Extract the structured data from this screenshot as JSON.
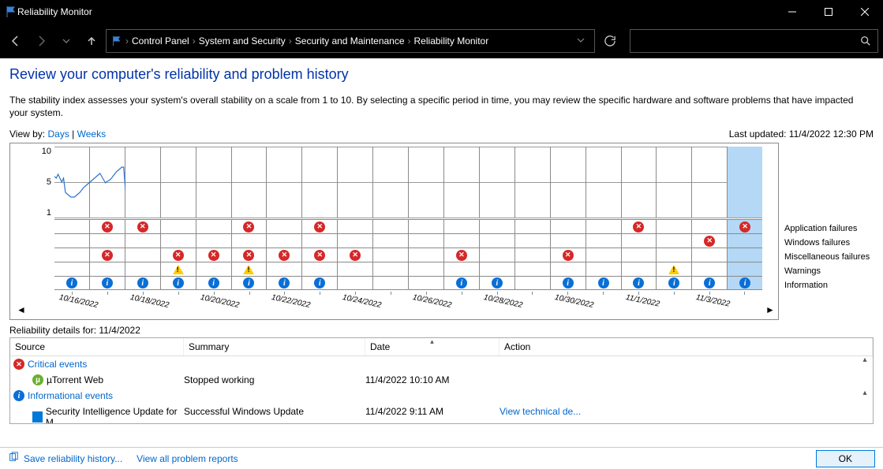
{
  "window": {
    "title": "Reliability Monitor"
  },
  "breadcrumbs": [
    "Control Panel",
    "System and Security",
    "Security and Maintenance",
    "Reliability Monitor"
  ],
  "page": {
    "heading": "Review your computer's reliability and problem history",
    "description": "The stability index assesses your system's overall stability on a scale from 1 to 10. By selecting a specific period in time, you may review the specific hardware and software problems that have impacted your system.",
    "view_by_label": "View by:",
    "view_days": "Days",
    "view_weeks": "Weeks",
    "last_updated_label": "Last updated:",
    "last_updated_value": "11/4/2022 12:30 PM"
  },
  "chart": {
    "y_ticks": [
      "10",
      "5",
      "1"
    ],
    "row_legends": [
      "Application failures",
      "Windows failures",
      "Miscellaneous failures",
      "Warnings",
      "Information"
    ],
    "dates": [
      "10/16/2022",
      "",
      "10/18/2022",
      "",
      "10/20/2022",
      "",
      "10/22/2022",
      "",
      "10/24/2022",
      "",
      "10/26/2022",
      "",
      "10/28/2022",
      "",
      "10/30/2022",
      "",
      "11/1/2022",
      "",
      "11/3/2022",
      ""
    ],
    "selected_col": 19,
    "stability_line_color": "#2a74d0",
    "stability_values": [
      6.2,
      6.0,
      6.5,
      6.0,
      5.5,
      6.0,
      4.2,
      4.0,
      3.8,
      3.6,
      3.6,
      3.6,
      3.8,
      4.0,
      4.2,
      4.5,
      4.8,
      5.0,
      5.2,
      5.4,
      5.6,
      5.8,
      6.0,
      6.2,
      6.4,
      6.6,
      6.2,
      5.8,
      5.4,
      5.6,
      5.7,
      5.9,
      6.2,
      6.5,
      6.8,
      7.0,
      7.2,
      7.4,
      7.4,
      4.5
    ],
    "events": {
      "app_failures": [
        0,
        1,
        1,
        0,
        0,
        2,
        0,
        1,
        0,
        0,
        0,
        0,
        0,
        0,
        0,
        0,
        1,
        0,
        0,
        1
      ],
      "win_failures": [
        0,
        0,
        0,
        0,
        0,
        0,
        0,
        0,
        0,
        0,
        0,
        0,
        0,
        0,
        0,
        0,
        0,
        0,
        1,
        0
      ],
      "misc_failures": [
        0,
        1,
        0,
        1,
        1,
        1,
        1,
        1,
        1,
        0,
        0,
        1,
        0,
        0,
        1,
        0,
        0,
        0,
        0,
        0
      ],
      "warnings": [
        0,
        0,
        0,
        1,
        0,
        1,
        0,
        0,
        0,
        0,
        0,
        0,
        0,
        0,
        0,
        0,
        0,
        1,
        0,
        0
      ],
      "information": [
        1,
        1,
        1,
        1,
        1,
        1,
        1,
        1,
        0,
        0,
        0,
        1,
        1,
        0,
        1,
        1,
        1,
        1,
        1,
        1
      ]
    }
  },
  "details": {
    "title_prefix": "Reliability details for:",
    "title_date": "11/4/2022",
    "columns": {
      "source": "Source",
      "summary": "Summary",
      "date": "Date",
      "action": "Action"
    },
    "groups": [
      {
        "name": "Critical events",
        "icon": "err",
        "rows": [
          {
            "icon": "utorrent",
            "source": "µTorrent Web",
            "summary": "Stopped working",
            "date": "11/4/2022 10:10 AM",
            "action": ""
          }
        ]
      },
      {
        "name": "Informational events",
        "icon": "info",
        "rows": [
          {
            "icon": "windows",
            "source": "Security Intelligence Update for M...",
            "summary": "Successful Windows Update",
            "date": "11/4/2022 9:11 AM",
            "action": "View technical de..."
          }
        ]
      }
    ]
  },
  "footer": {
    "save_history": "Save reliability history...",
    "view_reports": "View all problem reports",
    "ok": "OK"
  },
  "colors": {
    "link": "#0066cc",
    "heading": "#0033aa",
    "grid": "#8a8a8a",
    "selection": "#b4d8f5"
  }
}
